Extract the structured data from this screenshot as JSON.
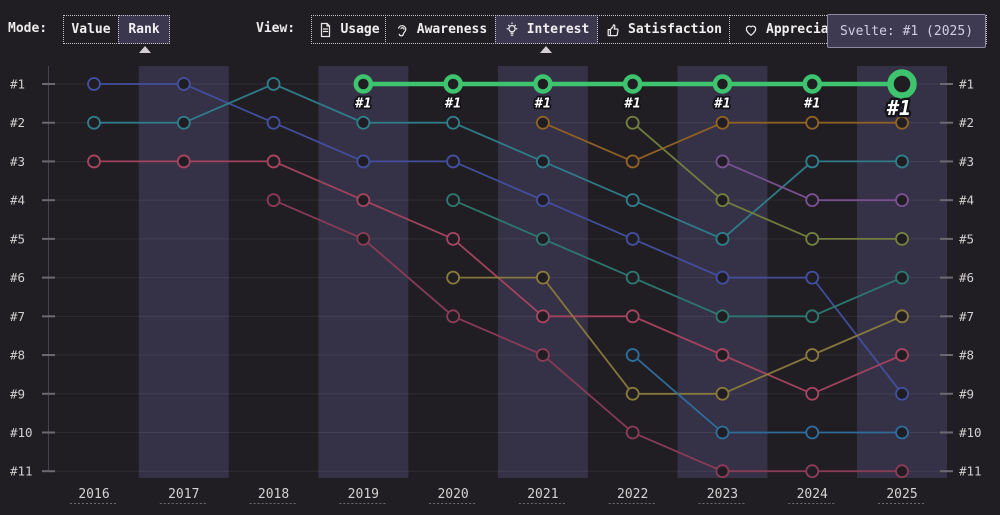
{
  "toolbar": {
    "mode_label": "Mode:",
    "mode_options": [
      {
        "label": "Value",
        "selected": false
      },
      {
        "label": "Rank",
        "selected": true
      }
    ],
    "view_label": "View:",
    "view_tabs": [
      {
        "label": "Usage",
        "icon": "document-icon",
        "selected": false
      },
      {
        "label": "Awareness",
        "icon": "ear-icon",
        "selected": false
      },
      {
        "label": "Interest",
        "icon": "lightbulb-icon",
        "selected": true
      },
      {
        "label": "Satisfaction",
        "icon": "thumbs-up-icon",
        "selected": false
      },
      {
        "label": "Appreciation",
        "icon": "heart-icon",
        "selected": false
      }
    ]
  },
  "tooltip": {
    "text": "Svelte: #1 (2025)"
  },
  "chart_data": {
    "type": "line",
    "subtype": "bump-rank-chart",
    "mode": "rank",
    "x": [
      2016,
      2017,
      2018,
      2019,
      2020,
      2021,
      2022,
      2023,
      2024,
      2025
    ],
    "x_axis_labels": [
      "2016",
      "2017",
      "2018",
      "2019",
      "2020",
      "2021",
      "2022",
      "2023",
      "2024",
      "2025"
    ],
    "y_axis_labels_left": [
      "#1",
      "#2",
      "#3",
      "#4",
      "#5",
      "#6",
      "#7",
      "#8",
      "#9",
      "#10",
      "#11"
    ],
    "y_axis_labels_right": [
      "#1",
      "#2",
      "#3",
      "#4",
      "#5",
      "#6",
      "#7",
      "#8",
      "#9",
      "#10",
      "#11"
    ],
    "ylim": [
      1,
      11
    ],
    "grid": true,
    "legend": false,
    "highlight": {
      "series": "Svelte",
      "badges": [
        "#1",
        "#1",
        "#1",
        "#1",
        "#1",
        "#1",
        "#1"
      ],
      "final_badge": "#1",
      "color": "#3ec46e"
    },
    "series": [
      {
        "name": "series-indigo",
        "color": "#4350a2",
        "ranks": [
          1,
          1,
          2,
          3,
          3,
          4,
          5,
          6,
          6,
          9
        ]
      },
      {
        "name": "series-teal",
        "color": "#2f7f8d",
        "ranks": [
          2,
          2,
          1,
          2,
          2,
          3,
          4,
          5,
          3,
          3
        ]
      },
      {
        "name": "series-red",
        "color": "#a84460",
        "ranks": [
          3,
          3,
          3,
          4,
          5,
          7,
          7,
          8,
          9,
          8
        ]
      },
      {
        "name": "series-crimson",
        "color": "#8c3c56",
        "ranks": [
          null,
          null,
          4,
          5,
          7,
          8,
          10,
          11,
          11,
          11
        ]
      },
      {
        "name": "series-seagreen",
        "color": "#2d7a72",
        "ranks": [
          null,
          null,
          null,
          null,
          4,
          5,
          6,
          7,
          7,
          6
        ]
      },
      {
        "name": "series-olive",
        "color": "#8a7b3d",
        "ranks": [
          null,
          null,
          null,
          null,
          6,
          6,
          9,
          9,
          8,
          7
        ]
      },
      {
        "name": "series-amber",
        "color": "#936325",
        "ranks": [
          null,
          null,
          null,
          null,
          null,
          2,
          3,
          2,
          2,
          2
        ]
      },
      {
        "name": "series-lime",
        "color": "#74823f",
        "ranks": [
          null,
          null,
          null,
          null,
          null,
          null,
          2,
          4,
          5,
          5
        ]
      },
      {
        "name": "series-blue",
        "color": "#2f6f9f",
        "ranks": [
          null,
          null,
          null,
          null,
          null,
          null,
          8,
          10,
          10,
          10
        ]
      },
      {
        "name": "series-purple",
        "color": "#7b5295",
        "ranks": [
          null,
          null,
          null,
          null,
          null,
          null,
          null,
          3,
          4,
          4
        ]
      },
      {
        "name": "Svelte",
        "highlighted": true,
        "color": "#3ec46e",
        "ranks": [
          null,
          null,
          null,
          1,
          1,
          1,
          1,
          1,
          1,
          1
        ]
      }
    ]
  }
}
